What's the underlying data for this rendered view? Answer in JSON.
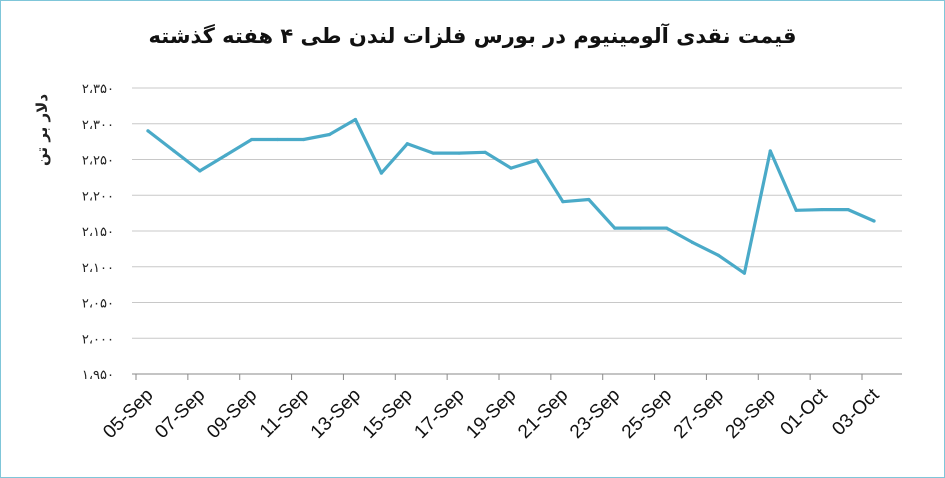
{
  "chart_data": {
    "type": "line",
    "title": "قیمت نقدی آلومینیوم در بورس فلزات لندن طی ۴ هفته گذشته",
    "ylabel": "دلار بر تن",
    "xlabel": "",
    "ylim": [
      1950,
      2350
    ],
    "yticks": [
      {
        "value": 1950,
        "label": "۱،۹۵۰"
      },
      {
        "value": 2000,
        "label": "۲،۰۰۰"
      },
      {
        "value": 2050,
        "label": "۲،۰۵۰"
      },
      {
        "value": 2100,
        "label": "۲،۱۰۰"
      },
      {
        "value": 2150,
        "label": "۲،۱۵۰"
      },
      {
        "value": 2200,
        "label": "۲،۲۰۰"
      },
      {
        "value": 2250,
        "label": "۲،۲۵۰"
      },
      {
        "value": 2300,
        "label": "۲،۳۰۰"
      },
      {
        "value": 2350,
        "label": "۲،۳۵۰"
      }
    ],
    "xtick_labels": [
      "05-Sep",
      "07-Sep",
      "09-Sep",
      "11-Sep",
      "13-Sep",
      "15-Sep",
      "17-Sep",
      "19-Sep",
      "21-Sep",
      "23-Sep",
      "25-Sep",
      "27-Sep",
      "29-Sep",
      "01-Oct",
      "03-Oct"
    ],
    "grid": "horizontal",
    "color": "#4aaac8",
    "x": [
      "05-Sep",
      "06-Sep",
      "07-Sep",
      "08-Sep",
      "09-Sep",
      "10-Sep",
      "11-Sep",
      "12-Sep",
      "13-Sep",
      "14-Sep",
      "15-Sep",
      "16-Sep",
      "17-Sep",
      "18-Sep",
      "19-Sep",
      "20-Sep",
      "21-Sep",
      "22-Sep",
      "23-Sep",
      "24-Sep",
      "25-Sep",
      "26-Sep",
      "27-Sep",
      "28-Sep",
      "29-Sep",
      "30-Sep",
      "01-Oct",
      "02-Oct",
      "03-Oct"
    ],
    "values": [
      2290,
      2262,
      2234,
      2256,
      2278,
      2278,
      2278,
      2285,
      2306,
      2231,
      2272,
      2259,
      2259,
      2260,
      2238,
      2249,
      2191,
      2194,
      2154,
      2154,
      2154,
      2134,
      2116,
      2091,
      2262,
      2179,
      2180,
      2180,
      2164
    ]
  }
}
